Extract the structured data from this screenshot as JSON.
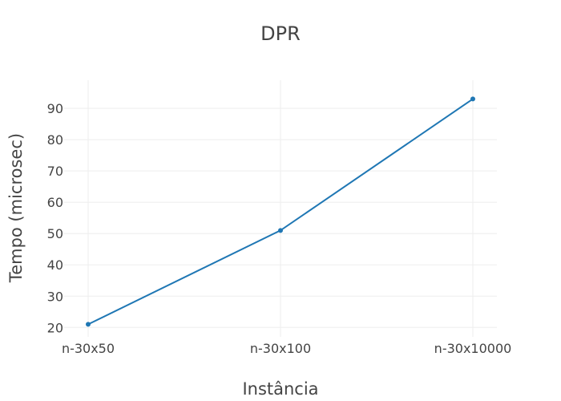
{
  "chart_data": {
    "type": "line",
    "title": "DPR",
    "xlabel": "Instância",
    "ylabel": "Tempo (microsec)",
    "categories": [
      "n-30x50",
      "n-30x100",
      "n-30x10000"
    ],
    "series": [
      {
        "values": [
          21,
          51,
          93
        ],
        "color": "#1f77b4"
      }
    ],
    "ylim": [
      17,
      99
    ],
    "yticks": [
      20,
      30,
      40,
      50,
      60,
      70,
      80,
      90
    ],
    "grid": true,
    "legend": "none"
  }
}
